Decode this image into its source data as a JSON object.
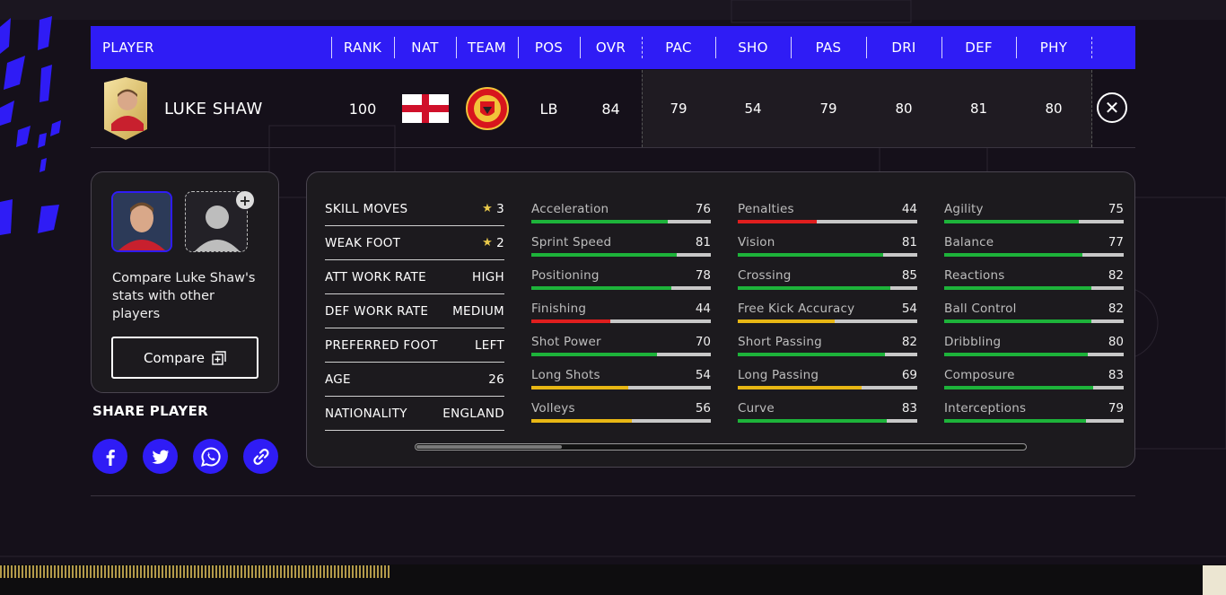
{
  "header": {
    "columns": [
      "PLAYER",
      "RANK",
      "NAT",
      "TEAM",
      "POS",
      "OVR",
      "PAC",
      "SHO",
      "PAS",
      "DRI",
      "DEF",
      "PHY"
    ]
  },
  "player": {
    "name": "LUKE SHAW",
    "rank": "100",
    "pos": "LB",
    "ovr": "84",
    "face_stats": [
      "79",
      "54",
      "79",
      "80",
      "81",
      "80"
    ]
  },
  "compare": {
    "text": "Compare Luke Shaw's stats with other players",
    "button_label": "Compare",
    "plus": "+"
  },
  "share": {
    "title": "SHARE PLAYER",
    "icons": [
      "facebook-icon",
      "twitter-icon",
      "whatsapp-icon",
      "link-icon"
    ]
  },
  "info": [
    {
      "label": "SKILL MOVES",
      "value": "3",
      "star": true
    },
    {
      "label": "WEAK FOOT",
      "value": "2",
      "star": true
    },
    {
      "label": "ATT WORK RATE",
      "value": "HIGH"
    },
    {
      "label": "DEF WORK RATE",
      "value": "MEDIUM"
    },
    {
      "label": "PREFERRED FOOT",
      "value": "LEFT"
    },
    {
      "label": "AGE",
      "value": "26"
    },
    {
      "label": "NATIONALITY",
      "value": "ENGLAND"
    }
  ],
  "attributes": [
    [
      {
        "label": "Acceleration",
        "value": 76
      },
      {
        "label": "Sprint Speed",
        "value": 81
      },
      {
        "label": "Positioning",
        "value": 78
      },
      {
        "label": "Finishing",
        "value": 44
      },
      {
        "label": "Shot Power",
        "value": 70
      },
      {
        "label": "Long Shots",
        "value": 54
      },
      {
        "label": "Volleys",
        "value": 56
      }
    ],
    [
      {
        "label": "Penalties",
        "value": 44
      },
      {
        "label": "Vision",
        "value": 81
      },
      {
        "label": "Crossing",
        "value": 85
      },
      {
        "label": "Free Kick Accuracy",
        "value": 54
      },
      {
        "label": "Short Passing",
        "value": 82
      },
      {
        "label": "Long Passing",
        "value": 69
      },
      {
        "label": "Curve",
        "value": 83
      }
    ],
    [
      {
        "label": "Agility",
        "value": 75
      },
      {
        "label": "Balance",
        "value": 77
      },
      {
        "label": "Reactions",
        "value": 82
      },
      {
        "label": "Ball Control",
        "value": 82
      },
      {
        "label": "Dribbling",
        "value": 80
      },
      {
        "label": "Composure",
        "value": 83
      },
      {
        "label": "Interceptions",
        "value": 79
      }
    ]
  ],
  "colors": {
    "accent": "#2f1cf5",
    "high": "#1db33a",
    "mid": "#e8b714",
    "low": "#e01e1e",
    "star": "#e8c84a"
  },
  "scroll": {
    "position": 0.0,
    "visible_fraction": 0.24
  }
}
